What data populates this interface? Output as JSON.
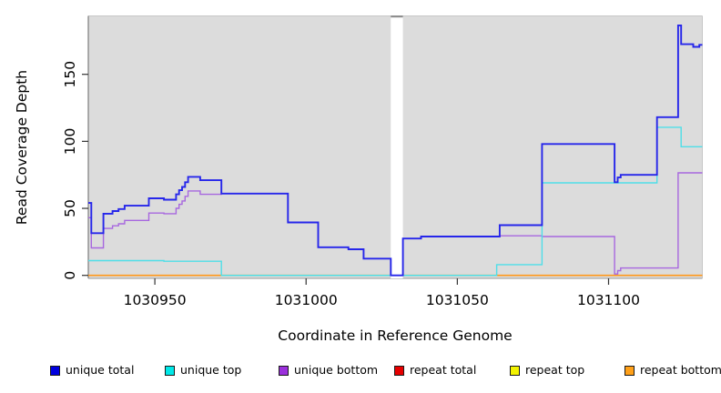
{
  "chart_data": {
    "type": "line",
    "subtype": "step-after",
    "title": "",
    "xlabel": "Coordinate in Reference Genome",
    "ylabel": "Read Coverage Depth",
    "xlim": [
      1030928,
      1031131
    ],
    "ylim": [
      0,
      193
    ],
    "x_ticks": [
      1030950,
      1031000,
      1031050,
      1031100
    ],
    "y_ticks": [
      0,
      50,
      100,
      150
    ],
    "grid": false,
    "panel_bg": "#DCDCDC",
    "gap_band": {
      "from": 1031028,
      "to": 1031032,
      "fill": "#FFFFFF"
    },
    "legend_position": "bottom",
    "series": [
      {
        "name": "unique total",
        "color": "#2626EA",
        "width": 1.9,
        "points": [
          [
            1030928,
            54
          ],
          [
            1030929,
            31.5
          ],
          [
            1030933,
            46
          ],
          [
            1030936,
            48
          ],
          [
            1030938,
            49.5
          ],
          [
            1030940,
            52
          ],
          [
            1030948,
            57.5
          ],
          [
            1030953,
            56.5
          ],
          [
            1030957,
            60.5
          ],
          [
            1030958,
            63.5
          ],
          [
            1030959,
            66
          ],
          [
            1030960,
            69.5
          ],
          [
            1030961,
            73.5
          ],
          [
            1030965,
            71
          ],
          [
            1030972,
            61
          ],
          [
            1030994,
            39.5
          ],
          [
            1031004,
            21
          ],
          [
            1031014,
            19.5
          ],
          [
            1031019,
            12.5
          ],
          [
            1031028,
            0
          ],
          [
            1031032,
            27.5
          ],
          [
            1031038,
            29
          ],
          [
            1031064,
            37.5
          ],
          [
            1031078,
            98
          ],
          [
            1031102,
            69.5
          ],
          [
            1031103,
            73
          ],
          [
            1031104,
            75
          ],
          [
            1031116,
            118
          ],
          [
            1031123,
            186.5
          ],
          [
            1031124,
            172.5
          ],
          [
            1031128,
            170.5
          ],
          [
            1031130,
            172
          ]
        ]
      },
      {
        "name": "unique top",
        "color": "#4EDEE8",
        "width": 1.4,
        "points": [
          [
            1030928,
            11
          ],
          [
            1030953,
            10.5
          ],
          [
            1030972,
            0
          ],
          [
            1031063,
            8
          ],
          [
            1031078,
            69
          ],
          [
            1031116,
            110.5
          ],
          [
            1031124,
            96
          ]
        ]
      },
      {
        "name": "unique bottom",
        "color": "#A767DF",
        "width": 1.4,
        "points": [
          [
            1030928,
            43
          ],
          [
            1030929,
            20.5
          ],
          [
            1030933,
            35
          ],
          [
            1030936,
            37
          ],
          [
            1030938,
            38.5
          ],
          [
            1030940,
            41
          ],
          [
            1030948,
            46.5
          ],
          [
            1030953,
            46
          ],
          [
            1030957,
            50
          ],
          [
            1030958,
            53
          ],
          [
            1030959,
            55.5
          ],
          [
            1030960,
            59
          ],
          [
            1030961,
            63
          ],
          [
            1030965,
            60.5
          ],
          [
            1030972,
            61
          ],
          [
            1030994,
            39.5
          ],
          [
            1031004,
            21
          ],
          [
            1031014,
            19.5
          ],
          [
            1031019,
            12.5
          ],
          [
            1031028,
            0
          ],
          [
            1031032,
            27.5
          ],
          [
            1031038,
            29
          ],
          [
            1031064,
            29.5
          ],
          [
            1031078,
            29
          ],
          [
            1031102,
            1
          ],
          [
            1031103,
            3.5
          ],
          [
            1031104,
            5.5
          ],
          [
            1031123,
            76.5
          ]
        ]
      },
      {
        "name": "repeat total",
        "color": "#E60000",
        "width": 1.4,
        "points": [
          [
            1030928,
            0
          ]
        ]
      },
      {
        "name": "repeat top",
        "color": "#F2F200",
        "width": 1.4,
        "points": [
          [
            1030928,
            0
          ]
        ]
      },
      {
        "name": "repeat bottom",
        "color": "#FF9719",
        "width": 1.6,
        "points": [
          [
            1030928,
            0
          ]
        ]
      }
    ],
    "zero_line_overlay": {
      "color": "#96D696",
      "comment": "pale green blend where unique-top sits at 0 over repeat lines",
      "segments": [
        [
          1030972,
          1031028
        ],
        [
          1031032,
          1031063
        ]
      ]
    },
    "legend": [
      {
        "label": "unique total",
        "color": "#0000DE"
      },
      {
        "label": "unique top",
        "color": "#00E8E8"
      },
      {
        "label": "unique bottom",
        "color": "#9B30DC"
      },
      {
        "label": "repeat total",
        "color": "#E60000"
      },
      {
        "label": "repeat top",
        "color": "#F2F200"
      },
      {
        "label": "repeat bottom",
        "color": "#FFA019"
      }
    ]
  }
}
